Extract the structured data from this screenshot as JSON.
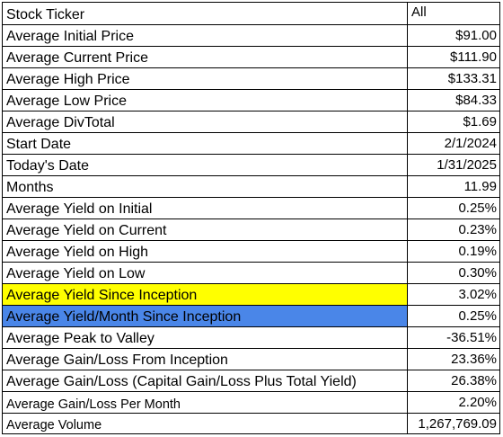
{
  "colors": {
    "yellow_highlight": "#ffff00",
    "blue_highlight": "#4a86e8"
  },
  "rows": [
    {
      "label": "Stock Ticker",
      "value": "All"
    },
    {
      "label": "Average Initial Price",
      "value": "$91.00"
    },
    {
      "label": "Average Current Price",
      "value": "$111.90"
    },
    {
      "label": "Average High Price",
      "value": "$133.31"
    },
    {
      "label": "Average Low Price",
      "value": "$84.33"
    },
    {
      "label": "Average DivTotal",
      "value": "$1.69"
    },
    {
      "label": "Start Date",
      "value": "2/1/2024"
    },
    {
      "label": "Today's Date",
      "value": "1/31/2025"
    },
    {
      "label": "Months",
      "value": "11.99"
    },
    {
      "label": "Average Yield on Initial",
      "value": "0.25%"
    },
    {
      "label": "Average Yield on Current",
      "value": "0.23%"
    },
    {
      "label": "Average Yield on High",
      "value": "0.19%"
    },
    {
      "label": "Average Yield on Low",
      "value": "0.30%"
    },
    {
      "label": "Average Yield Since Inception",
      "value": "3.02%"
    },
    {
      "label": "Average Yield/Month Since Inception",
      "value": "0.25%"
    },
    {
      "label": "Average Peak to Valley",
      "value": "-36.51%"
    },
    {
      "label": "Average Gain/Loss From Inception",
      "value": "23.36%"
    },
    {
      "label": "Average Gain/Loss (Capital Gain/Loss Plus Total Yield)",
      "value": "26.38%"
    },
    {
      "label": "Average Gain/Loss Per Month",
      "value": "2.20%"
    },
    {
      "label": "Average Volume",
      "value": "1,267,769.09"
    }
  ]
}
